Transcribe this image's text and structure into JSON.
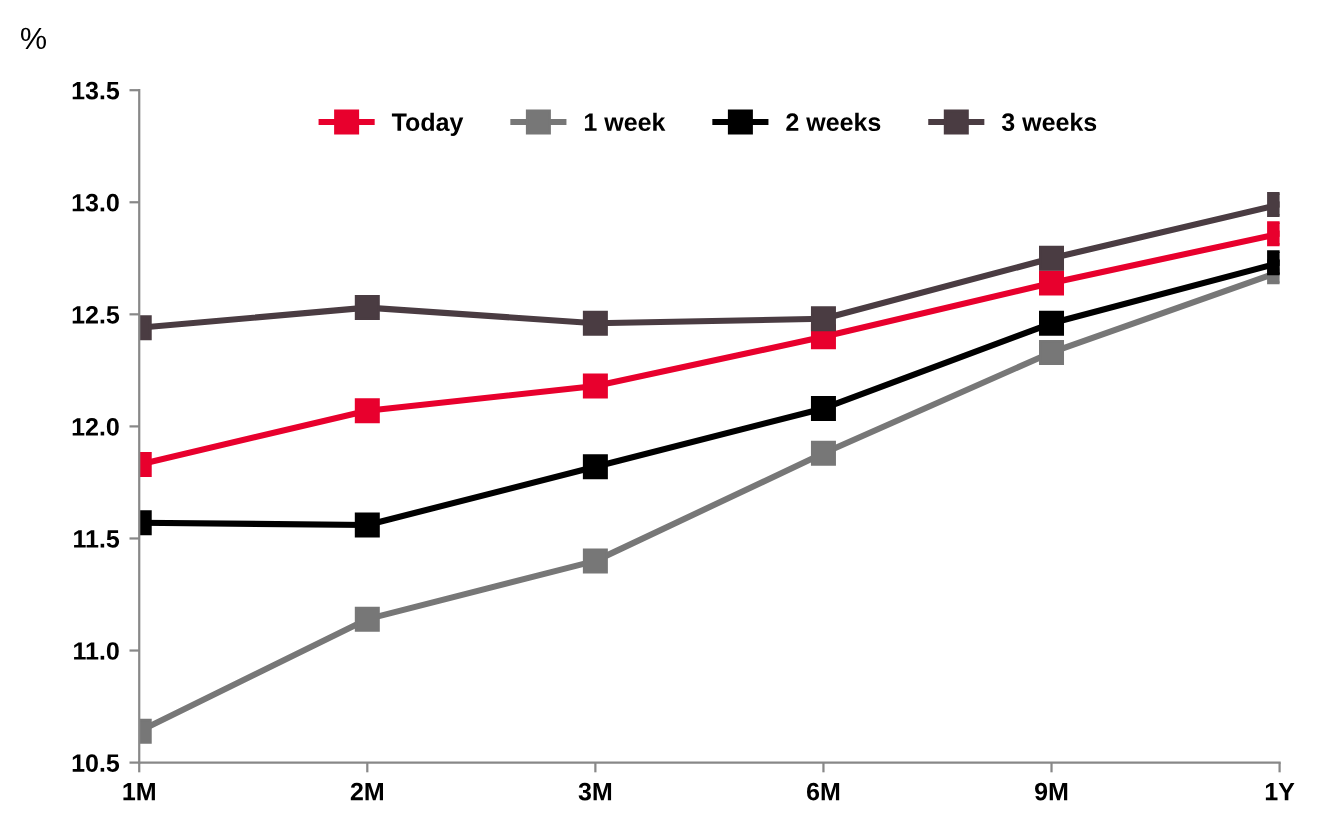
{
  "chart_data": {
    "type": "line",
    "ylabel": "%",
    "categories": [
      "1M",
      "2M",
      "3M",
      "6M",
      "9M",
      "1Y"
    ],
    "series": [
      {
        "name": "Today",
        "color": "#e8002d",
        "values": [
          11.83,
          12.07,
          12.18,
          12.4,
          12.64,
          12.86
        ]
      },
      {
        "name": "1 week",
        "color": "#777777",
        "values": [
          10.64,
          11.14,
          11.4,
          11.88,
          12.33,
          12.69
        ]
      },
      {
        "name": "2 weeks",
        "color": "#000000",
        "values": [
          11.57,
          11.56,
          11.82,
          12.08,
          12.46,
          12.73
        ]
      },
      {
        "name": "3 weeks",
        "color": "#4a3c42",
        "values": [
          12.44,
          12.53,
          12.46,
          12.48,
          12.75,
          12.99
        ]
      }
    ],
    "ylim": [
      10.5,
      13.5
    ],
    "yticks": [
      {
        "value": 10.5,
        "label": "10.5"
      },
      {
        "value": 11.0,
        "label": "11.0"
      },
      {
        "value": 11.5,
        "label": "11.5"
      },
      {
        "value": 12.0,
        "label": "12.0"
      },
      {
        "value": 12.5,
        "label": "12.5"
      },
      {
        "value": 13.0,
        "label": "13.0"
      },
      {
        "value": 13.5,
        "label": "13.5"
      }
    ],
    "grid": false,
    "legend": "top",
    "marker": "square",
    "line_style": "solid"
  }
}
